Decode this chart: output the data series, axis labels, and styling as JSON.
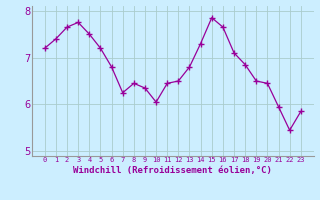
{
  "x": [
    0,
    1,
    2,
    3,
    4,
    5,
    6,
    7,
    8,
    9,
    10,
    11,
    12,
    13,
    14,
    15,
    16,
    17,
    18,
    19,
    20,
    21,
    22,
    23
  ],
  "y": [
    7.2,
    7.4,
    7.65,
    7.75,
    7.5,
    7.2,
    6.8,
    6.25,
    6.45,
    6.35,
    6.05,
    6.45,
    6.5,
    6.8,
    7.3,
    7.85,
    7.65,
    7.1,
    6.85,
    6.5,
    6.45,
    5.95,
    5.45,
    5.85
  ],
  "line_color": "#990099",
  "marker": "+",
  "marker_size": 4,
  "bg_color": "#cceeff",
  "grid_color": "#aacccc",
  "xlabel": "Windchill (Refroidissement éolien,°C)",
  "xlabel_color": "#990099",
  "ylim": [
    4.9,
    8.1
  ],
  "yticks": [
    5,
    6,
    7,
    8
  ],
  "xticks": [
    0,
    1,
    2,
    3,
    4,
    5,
    6,
    7,
    8,
    9,
    10,
    11,
    12,
    13,
    14,
    15,
    16,
    17,
    18,
    19,
    20,
    21,
    22,
    23
  ],
  "spine_color": "#999999",
  "tick_color": "#990099",
  "yticklabel_color": "#990099"
}
